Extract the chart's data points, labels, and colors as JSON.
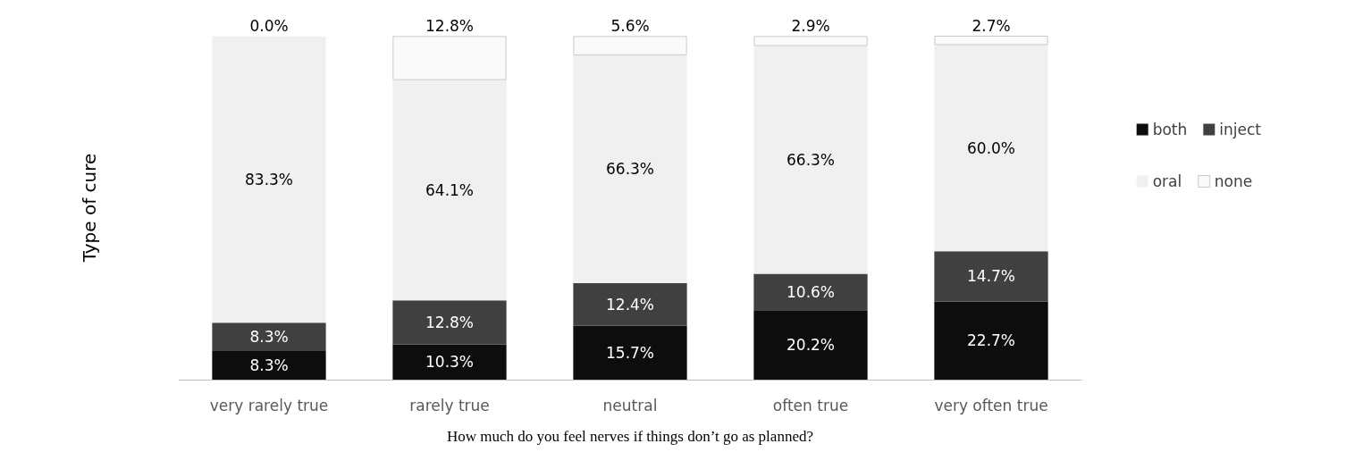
{
  "chart_data": {
    "type": "bar",
    "stacked": true,
    "ylabel": "Type of cure",
    "xlabel": "How much do you feel nerves if things don’t go as planned?",
    "categories": [
      "very rarely true",
      "rarely true",
      "neutral",
      "often true",
      "very often true"
    ],
    "data_labels": true,
    "legend": "right",
    "grid": false,
    "series": [
      {
        "name": "both",
        "color": "#0d0d0d",
        "values": [
          8.3,
          10.3,
          15.7,
          20.2,
          22.7
        ],
        "value_labels": [
          "8.3%",
          "10.3%",
          "15.7%",
          "20.2%",
          "22.7%"
        ]
      },
      {
        "name": "inject",
        "color": "#404040",
        "values": [
          8.3,
          12.8,
          12.4,
          10.6,
          14.7
        ],
        "value_labels": [
          "8.3%",
          "12.8%",
          "12.4%",
          "10.6%",
          "14.7%"
        ]
      },
      {
        "name": "oral",
        "color": "#f0f0f0",
        "values": [
          83.3,
          64.1,
          66.3,
          66.3,
          60.0
        ],
        "value_labels": [
          "83.3%",
          "64.1%",
          "66.3%",
          "66.3%",
          "60.0%"
        ]
      },
      {
        "name": "none",
        "color": "#fafafa",
        "values": [
          0.0,
          12.8,
          5.6,
          2.9,
          2.7
        ],
        "value_labels": [
          "0.0%",
          "12.8%",
          "5.6%",
          "2.9%",
          "2.7%"
        ]
      }
    ]
  }
}
